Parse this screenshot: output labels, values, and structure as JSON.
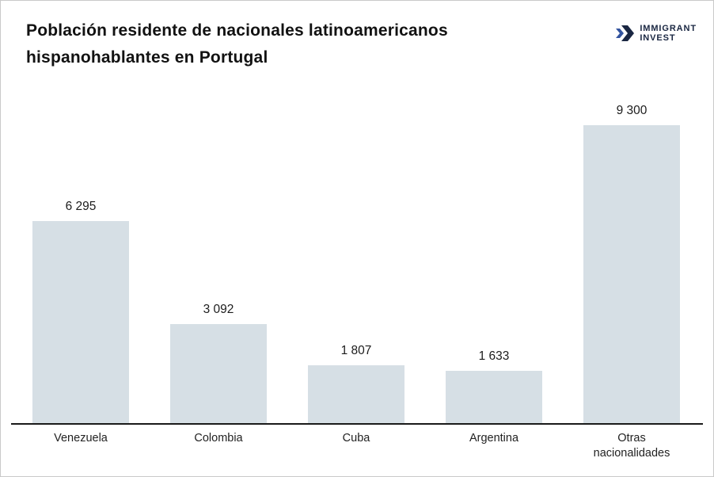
{
  "header": {
    "title": "Población residente de nacionales latinoamericanos hispanohablantes en Portugal",
    "logo": {
      "line1": "IMMIGRANT",
      "line2": "INVEST",
      "navy": "#1a2742",
      "accent_blue": "#33549f"
    }
  },
  "chart_data": {
    "type": "bar",
    "title": "Población residente de nacionales latinoamericanos hispanohablantes en Portugal",
    "categories": [
      "Venezuela",
      "Colombia",
      "Cuba",
      "Argentina",
      "Otras nacionalidades"
    ],
    "values": [
      6295,
      3092,
      1807,
      1633,
      9300
    ],
    "value_labels": [
      "6 295",
      "3 092",
      "1 807",
      "1 633",
      "9 300"
    ],
    "xlabel": "",
    "ylabel": "",
    "ylim": [
      0,
      9300
    ],
    "grid": false,
    "legend": false,
    "bar_color": "#d6dfe5",
    "axis_color": "#1a1a1a",
    "label_color": "#1c1c1c"
  }
}
